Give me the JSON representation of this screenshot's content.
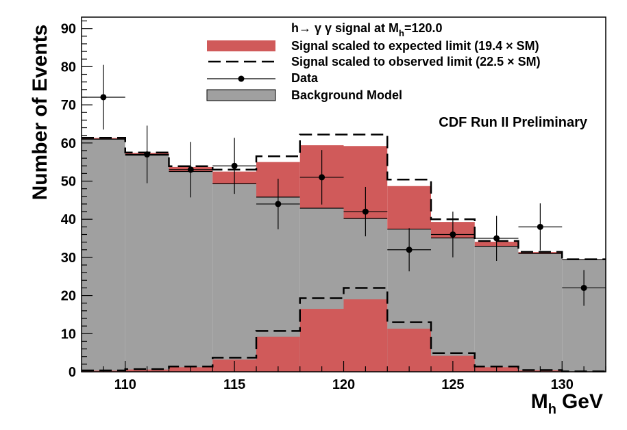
{
  "chart_data": {
    "type": "area",
    "xlabel_main": "M",
    "xlabel_sub": "h",
    "xlabel_unit": "GeV",
    "ylabel": "Number of Events",
    "xlim": [
      108,
      132
    ],
    "ylim": [
      0,
      93
    ],
    "xticks": [
      "110",
      "115",
      "120",
      "125",
      "130"
    ],
    "yticks": [
      "0",
      "10",
      "20",
      "30",
      "40",
      "50",
      "60",
      "70",
      "80",
      "90"
    ],
    "bin_edges": [
      108,
      110,
      112,
      114,
      116,
      118,
      120,
      122,
      124,
      126,
      128,
      130,
      132
    ],
    "background": [
      61,
      56.8,
      52.5,
      49.3,
      45.8,
      42.9,
      40.2,
      37.4,
      35.1,
      32.9,
      31.0,
      29.4
    ],
    "signal_expected": [
      0.3,
      0.6,
      1.2,
      3.2,
      9.2,
      16.5,
      19.0,
      11.3,
      4.2,
      1.2,
      0.4,
      0.1
    ],
    "signal_observed": [
      0.35,
      0.7,
      1.4,
      3.7,
      10.7,
      19.3,
      22.0,
      13.0,
      4.9,
      1.4,
      0.45,
      0.12
    ],
    "data": {
      "x": [
        109,
        111,
        113,
        115,
        117,
        119,
        121,
        123,
        125,
        127,
        129,
        131
      ],
      "y": [
        72,
        57,
        53,
        54,
        44,
        51,
        42,
        32,
        36,
        35,
        38,
        22
      ]
    },
    "legend": {
      "title": "h→ γ γ signal at M",
      "title_sub": "h",
      "title_suffix": "=120.0",
      "entries": [
        "Signal scaled to expected limit (19.4 × SM)",
        "Signal scaled to observed limit (22.5 × SM)",
        "Data",
        "Background Model"
      ]
    },
    "annotation": "CDF Run II Preliminary",
    "colors": {
      "background": "#a0a0a0",
      "signal": "#d05a5a",
      "observed_line": "#000000",
      "data": "#000000"
    },
    "legend_position": "top-right",
    "grid": false
  }
}
